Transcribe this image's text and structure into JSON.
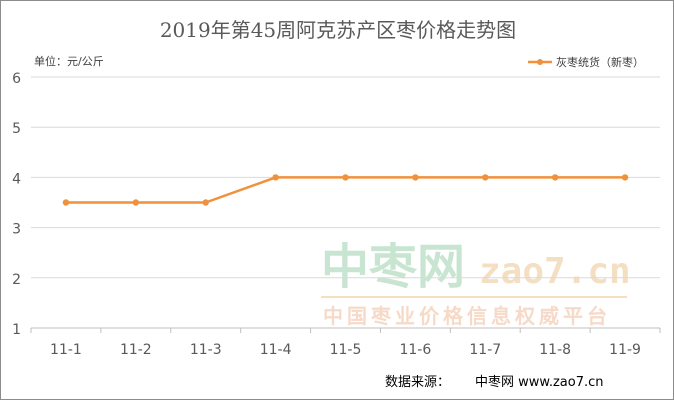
{
  "chart_data": {
    "type": "line",
    "title": "2019年第45周阿克苏产区枣价格走势图",
    "unit_label": "单位：元/公斤",
    "categories": [
      "11-1",
      "11-2",
      "11-3",
      "11-4",
      "11-5",
      "11-6",
      "11-7",
      "11-8",
      "11-9"
    ],
    "series": [
      {
        "name": "灰枣统货（新枣）",
        "values": [
          3.5,
          3.5,
          3.5,
          4,
          4,
          4,
          4,
          4,
          4
        ]
      }
    ],
    "ylim": [
      1,
      6
    ],
    "yticks": [
      1,
      2,
      3,
      4,
      5,
      6
    ],
    "grid": true,
    "legend_position": "top-right",
    "colors": {
      "series": "#f0913c",
      "grid": "#d9d9d9",
      "axis_text": "#595959",
      "title": "#595959"
    }
  },
  "watermark": {
    "logo_cn": "中枣网",
    "logo_url": "zao7.cn",
    "slogan": "中国枣业价格信息权威平台"
  },
  "source": {
    "label": "数据来源：",
    "name": "中枣网 www.zao7.cn"
  }
}
